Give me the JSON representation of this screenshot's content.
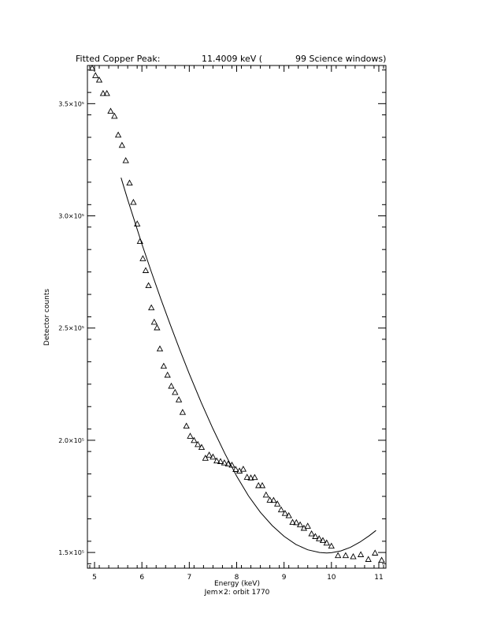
{
  "chart_data": {
    "type": "scatter",
    "title": {
      "label": "Fitted Copper Peak:",
      "energy": "11.4009 keV (",
      "windows": "99 Science windows)"
    },
    "xlabel": "Energy (keV)",
    "subcaption": "Jem×2: orbit 1770",
    "ylabel": "Detector counts",
    "xlim": [
      4.85,
      11.15
    ],
    "ylim": [
      143000,
      367000
    ],
    "x_ticks": [
      5,
      6,
      7,
      8,
      9,
      10,
      11
    ],
    "x_tick_labels": [
      "5",
      "6",
      "7",
      "8",
      "9",
      "10",
      "11"
    ],
    "y_ticks": [
      150000,
      200000,
      250000,
      300000,
      350000
    ],
    "y_tick_labels": [
      "1.5×10⁵",
      "2.0×10⁵",
      "2.5×10⁵",
      "3.0×10⁵",
      "3.5×10⁵"
    ],
    "grid": false,
    "series": [
      {
        "marker": "triangle",
        "x": [
          4.95,
          5.02,
          5.1,
          5.18,
          5.26,
          5.34,
          5.42,
          5.5,
          5.58,
          5.66,
          5.74,
          5.82,
          5.9,
          5.96,
          6.02,
          6.08,
          6.14,
          6.2,
          6.26,
          6.32,
          6.38,
          6.46,
          6.54,
          6.62,
          6.7,
          6.78,
          6.86,
          6.94,
          7.02,
          7.1,
          7.18,
          7.26,
          7.34,
          7.42,
          7.5,
          7.58,
          7.66,
          7.74,
          7.82,
          7.9,
          7.98,
          8.06,
          8.14,
          8.22,
          8.3,
          8.38,
          8.46,
          8.54,
          8.62,
          8.7,
          8.78,
          8.86,
          8.94,
          9.02,
          9.1,
          9.18,
          9.26,
          9.34,
          9.42,
          9.5,
          9.58,
          9.66,
          9.74,
          9.82,
          9.9,
          10.0,
          10.14,
          10.3,
          10.46,
          10.62,
          10.78,
          10.92,
          11.06
        ],
        "y": [
          365800,
          362500,
          360500,
          354500,
          354500,
          346600,
          344400,
          336000,
          331400,
          324600,
          314600,
          306000,
          296400,
          288600,
          280900,
          275600,
          268900,
          259000,
          252600,
          250100,
          240700,
          233000,
          229000,
          224100,
          221300,
          218000,
          212400,
          206300,
          201800,
          199900,
          198100,
          196800,
          192000,
          193400,
          192500,
          190800,
          190500,
          189900,
          189400,
          188900,
          187000,
          186300,
          187100,
          183500,
          183200,
          183400,
          179800,
          179800,
          175600,
          173300,
          173200,
          171600,
          169000,
          167400,
          166400,
          163400,
          163300,
          162300,
          160800,
          161700,
          158300,
          157100,
          156100,
          155300,
          154200,
          152800,
          148600,
          148600,
          148100,
          149000,
          146900,
          149700,
          146500
        ]
      },
      {
        "marker": "line",
        "x": [
          5.56,
          5.7,
          5.85,
          6.0,
          6.2,
          6.4,
          6.6,
          6.8,
          7.0,
          7.25,
          7.5,
          7.75,
          8.0,
          8.25,
          8.5,
          8.75,
          9.0,
          9.25,
          9.5,
          9.75,
          9.9,
          10.0,
          10.2,
          10.4,
          10.6,
          10.8,
          10.94
        ],
        "y": [
          317000,
          307300,
          297300,
          287400,
          275000,
          263000,
          251400,
          240300,
          229600,
          216900,
          205100,
          194100,
          184000,
          175200,
          167900,
          162000,
          157200,
          153600,
          151200,
          150000,
          149800,
          149900,
          150700,
          152300,
          154600,
          157500,
          159800
        ]
      }
    ]
  }
}
